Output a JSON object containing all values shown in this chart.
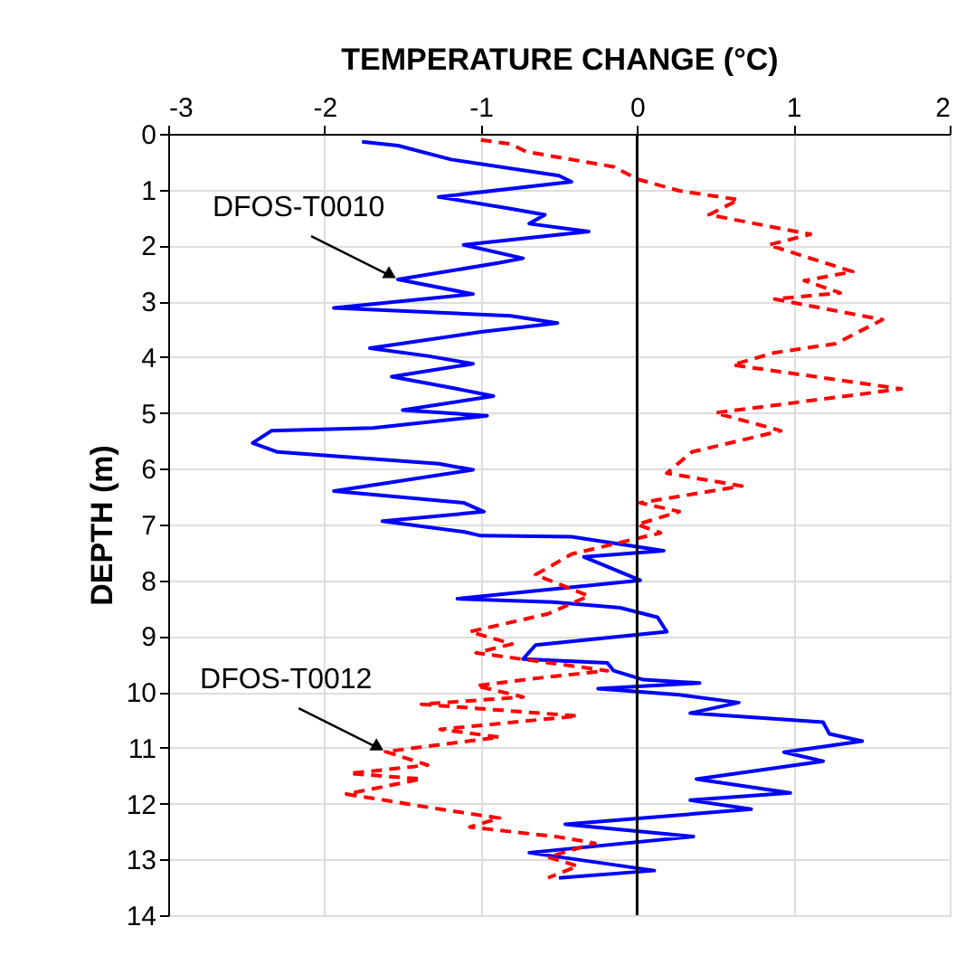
{
  "chart_data": {
    "type": "line",
    "xlabel": "TEMPERATURE CHANGE (°C)",
    "ylabel": "DEPTH (m)",
    "xlim": [
      -3,
      2
    ],
    "xticks": [
      -3,
      -2,
      -1,
      0,
      1,
      2
    ],
    "ylim": [
      14,
      0
    ],
    "yticks": [
      0,
      1,
      2,
      3,
      4,
      5,
      6,
      7,
      8,
      9,
      10,
      11,
      12,
      13,
      14
    ],
    "grid": true,
    "legend": false,
    "marker": "none",
    "ref_lines": [
      {
        "axis": "x",
        "value": 0,
        "color": "#000000",
        "line_style": "solid"
      }
    ],
    "annotations": [
      {
        "text": "DFOS-T0010",
        "x": -1.53,
        "y": 2.61
      },
      {
        "text": "DFOS-T0012",
        "x": -1.61,
        "y": 11.07
      }
    ],
    "series": [
      {
        "color": "#0000ff",
        "line_style": "solid",
        "x": [
          -1.76,
          -1.53,
          -1.19,
          -0.5,
          -0.42,
          -1.27,
          -0.81,
          -0.59,
          -0.69,
          -0.31,
          -1.11,
          -0.73,
          -0.88,
          -1.53,
          -1.05,
          -1.94,
          -0.81,
          -0.51,
          -1.0,
          -1.71,
          -1.34,
          -1.05,
          -1.57,
          -1.15,
          -0.92,
          -1.5,
          -0.96,
          -1.69,
          -2.34,
          -2.46,
          -2.3,
          -1.27,
          -1.05,
          -1.94,
          -1.11,
          -0.98,
          -1.63,
          -1.11,
          -1.0,
          -0.42,
          0.17,
          -0.34,
          0.02,
          -1.15,
          -0.54,
          -0.11,
          0.13,
          0.19,
          -0.65,
          -0.73,
          -0.19,
          -0.15,
          0.04,
          0.4,
          -0.25,
          0.27,
          0.65,
          0.34,
          1.19,
          1.23,
          1.44,
          0.94,
          1.19,
          0.38,
          0.98,
          0.34,
          0.73,
          -0.46,
          0.36,
          -0.69,
          0.11,
          -0.5
        ],
        "values": [
          0.14,
          0.21,
          0.46,
          0.75,
          0.86,
          1.13,
          1.34,
          1.45,
          1.61,
          1.75,
          1.99,
          2.23,
          2.31,
          2.61,
          2.87,
          3.12,
          3.26,
          3.39,
          3.55,
          3.84,
          3.98,
          4.12,
          4.35,
          4.57,
          4.7,
          4.95,
          5.05,
          5.27,
          5.32,
          5.54,
          5.7,
          5.91,
          6.02,
          6.4,
          6.61,
          6.77,
          6.94,
          7.13,
          7.2,
          7.22,
          7.47,
          7.58,
          8.0,
          8.33,
          8.39,
          8.49,
          8.66,
          8.92,
          9.16,
          9.41,
          9.48,
          9.62,
          9.78,
          9.84,
          9.94,
          10.05,
          10.19,
          10.38,
          10.54,
          10.75,
          10.88,
          11.08,
          11.24,
          11.56,
          11.81,
          11.94,
          12.1,
          12.37,
          12.59,
          12.88,
          13.2,
          13.33
        ]
      },
      {
        "color": "#ff0000",
        "line_style": "dashed",
        "x": [
          -1.0,
          -0.81,
          -0.71,
          -0.15,
          0.0,
          0.27,
          0.65,
          0.46,
          1.11,
          0.84,
          1.38,
          1.07,
          1.3,
          0.88,
          1.57,
          1.27,
          0.88,
          0.61,
          1.69,
          0.5,
          0.92,
          0.35,
          0.19,
          0.67,
          0.02,
          0.27,
          0.0,
          0.15,
          -0.42,
          -0.65,
          -0.31,
          -0.57,
          -1.07,
          -0.8,
          -1.03,
          -0.19,
          -0.57,
          -1.03,
          -0.73,
          -1.38,
          -0.38,
          -1.26,
          -0.88,
          -1.61,
          -1.34,
          -1.84,
          -1.38,
          -1.86,
          -1.26,
          -0.88,
          -1.07,
          -0.5,
          -0.27,
          -0.57,
          -0.38,
          -0.57
        ],
        "values": [
          0.11,
          0.18,
          0.32,
          0.59,
          0.81,
          1.02,
          1.18,
          1.45,
          1.8,
          1.99,
          2.47,
          2.63,
          2.85,
          2.96,
          3.33,
          3.76,
          3.92,
          4.14,
          4.57,
          5.0,
          5.32,
          5.7,
          6.08,
          6.31,
          6.61,
          6.77,
          7.0,
          7.15,
          7.53,
          7.9,
          8.28,
          8.6,
          8.92,
          9.14,
          9.3,
          9.62,
          9.73,
          9.89,
          10.09,
          10.22,
          10.43,
          10.67,
          10.81,
          11.07,
          11.31,
          11.46,
          11.56,
          11.83,
          12.1,
          12.26,
          12.42,
          12.6,
          12.71,
          12.96,
          13.12,
          13.33
        ]
      }
    ]
  }
}
